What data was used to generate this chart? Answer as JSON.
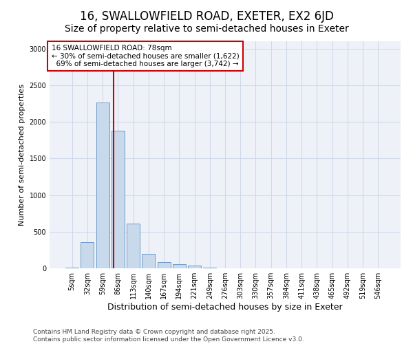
{
  "title_line1": "16, SWALLOWFIELD ROAD, EXETER, EX2 6JD",
  "title_line2": "Size of property relative to semi-detached houses in Exeter",
  "xlabel": "Distribution of semi-detached houses by size in Exeter",
  "ylabel": "Number of semi-detached properties",
  "categories": [
    "5sqm",
    "32sqm",
    "59sqm",
    "86sqm",
    "113sqm",
    "140sqm",
    "167sqm",
    "194sqm",
    "221sqm",
    "249sqm",
    "276sqm",
    "303sqm",
    "330sqm",
    "357sqm",
    "384sqm",
    "411sqm",
    "438sqm",
    "465sqm",
    "492sqm",
    "519sqm",
    "546sqm"
  ],
  "values": [
    10,
    360,
    2260,
    1880,
    610,
    195,
    80,
    55,
    35,
    10,
    0,
    0,
    0,
    0,
    0,
    0,
    0,
    0,
    0,
    0,
    0
  ],
  "bar_color": "#c9d9ec",
  "bar_edge_color": "#5a8fc3",
  "pct_smaller": 30,
  "count_smaller": 1622,
  "pct_larger": 69,
  "count_larger": 3742,
  "vline_color": "#cc0000",
  "annotation_box_color": "#cc0000",
  "annotation_bg": "#ffffff",
  "annotation_fontsize": 7.5,
  "ylim": [
    0,
    3100
  ],
  "yticks": [
    0,
    500,
    1000,
    1500,
    2000,
    2500,
    3000
  ],
  "grid_color": "#d0d8e8",
  "bg_color": "#eef2f8",
  "title1_fontsize": 12,
  "title2_fontsize": 10,
  "xlabel_fontsize": 9,
  "ylabel_fontsize": 8,
  "tick_fontsize": 7,
  "footer_line1": "Contains HM Land Registry data © Crown copyright and database right 2025.",
  "footer_line2": "Contains public sector information licensed under the Open Government Licence v3.0.",
  "footer_fontsize": 6.5
}
